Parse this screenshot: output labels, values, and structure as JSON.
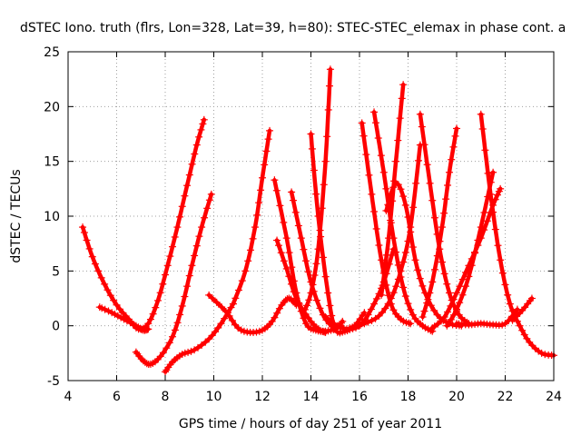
{
  "chart_data": {
    "type": "scatter",
    "title": "dSTEC Iono. truth (flrs, Lon=328, Lat=39, h=80): STEC-STEC_elemax in phase cont. a",
    "xlabel": "GPS time / hours of day 251 of year 2011",
    "ylabel": "dSTEC  / TECUs",
    "xlim": [
      4,
      24
    ],
    "ylim": [
      -5,
      25
    ],
    "xticks": [
      "4",
      "6",
      "8",
      "10",
      "12",
      "14",
      "16",
      "18",
      "20",
      "22",
      "24"
    ],
    "yticks": [
      "-5",
      "0",
      "5",
      "10",
      "15",
      "20",
      "25"
    ],
    "grid": true,
    "marker": "+",
    "color": "#ff0000",
    "series": [
      {
        "x": [
          4.6,
          5.0,
          5.5,
          6.0,
          6.5,
          6.9,
          7.3,
          7.7,
          8.1,
          8.5,
          8.9,
          9.3,
          9.6
        ],
        "y": [
          9.0,
          6.3,
          3.8,
          1.9,
          0.6,
          -0.3,
          0.2,
          2.3,
          5.5,
          9.0,
          12.8,
          16.5,
          18.8
        ]
      },
      {
        "x": [
          5.3,
          5.8,
          6.3,
          6.8,
          7.1,
          7.3
        ],
        "y": [
          1.7,
          1.2,
          0.6,
          0.0,
          -0.4,
          -0.3
        ]
      },
      {
        "x": [
          6.8,
          7.1,
          7.4,
          7.8,
          8.3,
          8.7,
          9.1,
          9.5,
          9.9
        ],
        "y": [
          -2.4,
          -3.2,
          -3.5,
          -2.8,
          -1.0,
          1.8,
          5.5,
          9.0,
          12.0
        ]
      },
      {
        "x": [
          8.0,
          8.3,
          8.7,
          9.2,
          9.8,
          10.3,
          10.8
        ],
        "y": [
          -4.2,
          -3.3,
          -2.6,
          -2.2,
          -1.2,
          0.2,
          2.0
        ]
      },
      {
        "x": [
          9.8,
          10.5,
          11.0,
          11.5,
          12.0,
          12.4,
          12.8,
          13.1,
          13.4
        ],
        "y": [
          2.8,
          1.3,
          -0.2,
          -0.6,
          -0.4,
          0.4,
          1.9,
          2.5,
          1.9
        ]
      },
      {
        "x": [
          10.8,
          11.3,
          11.7,
          12.0,
          12.3
        ],
        "y": [
          2.0,
          5.0,
          9.0,
          13.5,
          17.8
        ]
      },
      {
        "x": [
          12.5,
          13.0,
          13.4,
          13.8,
          14.2,
          14.6,
          15.0
        ],
        "y": [
          13.3,
          8.0,
          3.0,
          0.2,
          -0.4,
          -0.5,
          -0.3
        ]
      },
      {
        "x": [
          12.6,
          13.0,
          13.4,
          13.9,
          14.3,
          14.6
        ],
        "y": [
          7.8,
          5.2,
          2.5,
          0.7,
          -0.3,
          -0.6
        ]
      },
      {
        "x": [
          13.2,
          13.6,
          14.0,
          14.5,
          15.0,
          15.3
        ],
        "y": [
          12.2,
          8.0,
          4.0,
          1.0,
          -0.2,
          0.4
        ]
      },
      {
        "x": [
          13.7,
          14.0,
          14.3,
          14.6,
          14.8
        ],
        "y": [
          1.2,
          3.0,
          7.0,
          15.0,
          23.4
        ]
      },
      {
        "x": [
          14.0,
          14.3,
          14.7,
          15.0,
          15.4,
          15.8,
          16.2
        ],
        "y": [
          17.5,
          10.0,
          3.0,
          -0.3,
          -0.5,
          0.0,
          1.2
        ]
      },
      {
        "x": [
          14.6,
          15.1,
          15.6,
          16.1,
          16.6,
          17.0,
          17.4
        ],
        "y": [
          0.8,
          0.0,
          -0.3,
          0.2,
          2.0,
          4.0,
          7.0
        ]
      },
      {
        "x": [
          15.6,
          16.2,
          16.8,
          17.3,
          17.7,
          18.1,
          18.5
        ],
        "y": [
          -0.2,
          0.2,
          0.9,
          2.5,
          5.0,
          9.0,
          16.5
        ]
      },
      {
        "x": [
          16.1,
          16.5,
          16.9,
          17.3,
          17.7,
          18.1
        ],
        "y": [
          18.5,
          12.0,
          6.0,
          2.0,
          0.6,
          0.2
        ]
      },
      {
        "x": [
          16.6,
          17.0,
          17.4,
          17.8,
          18.2,
          18.6,
          19.0
        ],
        "y": [
          19.5,
          14.0,
          8.0,
          3.5,
          1.0,
          0.0,
          -0.5
        ]
      },
      {
        "x": [
          16.9,
          17.2,
          17.5,
          17.8
        ],
        "y": [
          2.8,
          8.0,
          15.0,
          22.0
        ]
      },
      {
        "x": [
          17.1,
          17.5,
          17.9,
          18.3,
          18.7,
          19.2,
          19.7,
          20.2
        ],
        "y": [
          10.5,
          13.0,
          11.0,
          6.0,
          3.0,
          1.0,
          0.2,
          0.0
        ]
      },
      {
        "x": [
          18.5,
          18.9,
          19.3,
          19.7,
          20.1,
          20.5
        ],
        "y": [
          19.3,
          13.0,
          7.0,
          3.0,
          1.0,
          0.2
        ]
      },
      {
        "x": [
          18.6,
          19.0,
          19.4,
          19.7,
          20.0
        ],
        "y": [
          0.8,
          4.0,
          9.0,
          14.0,
          18.0
        ]
      },
      {
        "x": [
          19.0,
          19.5,
          20.0,
          20.5,
          21.0,
          21.5,
          21.8
        ],
        "y": [
          -0.2,
          0.8,
          3.0,
          5.5,
          8.0,
          11.0,
          12.5
        ]
      },
      {
        "x": [
          19.6,
          20.0,
          20.5,
          21.0,
          21.5
        ],
        "y": [
          0.0,
          1.5,
          4.5,
          9.0,
          14.0
        ]
      },
      {
        "x": [
          20.0,
          20.5,
          21.0,
          21.5,
          22.0,
          22.5
        ],
        "y": [
          0.2,
          0.1,
          0.2,
          0.1,
          0.2,
          1.5
        ]
      },
      {
        "x": [
          21.0,
          21.4,
          21.8,
          22.2,
          22.6,
          23.0,
          23.5,
          24.0
        ],
        "y": [
          19.3,
          12.0,
          6.0,
          2.0,
          0.0,
          -1.5,
          -2.5,
          -2.7
        ]
      },
      {
        "x": [
          22.3,
          22.7,
          23.1
        ],
        "y": [
          0.5,
          1.4,
          2.5
        ]
      }
    ]
  }
}
